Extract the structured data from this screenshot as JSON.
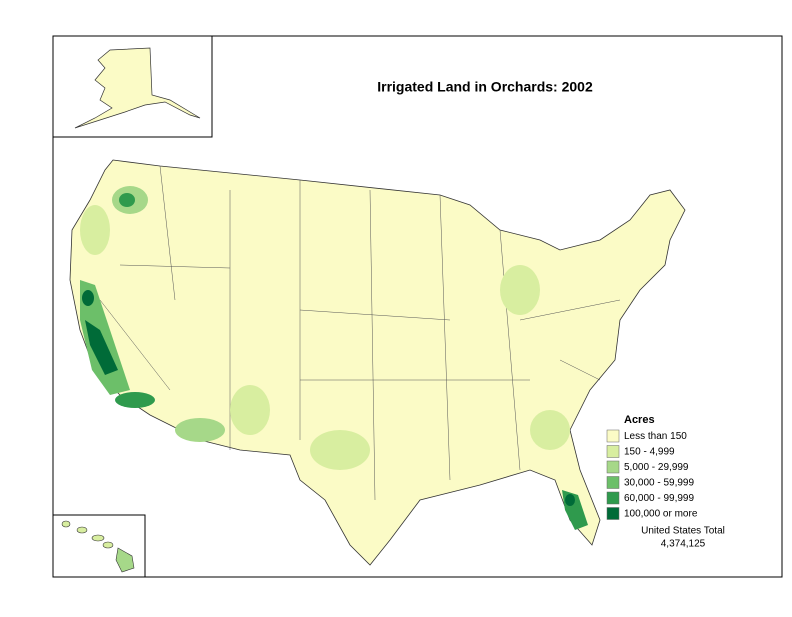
{
  "title": "Irrigated Land in Orchards:  2002",
  "legend": {
    "title": "Acres",
    "items": [
      {
        "label": "Less than 150",
        "color": "#fbfbc6"
      },
      {
        "label": "150 - 4,999",
        "color": "#d8eea0"
      },
      {
        "label": "5,000 - 29,999",
        "color": "#a6d889"
      },
      {
        "label": "30,000 - 59,999",
        "color": "#6cbf69"
      },
      {
        "label": "60,000 - 99,999",
        "color": "#2f9a4d"
      },
      {
        "label": "100,000 or more",
        "color": "#006b38"
      }
    ]
  },
  "total": {
    "label": "United States Total",
    "value": "4,374,125"
  }
}
